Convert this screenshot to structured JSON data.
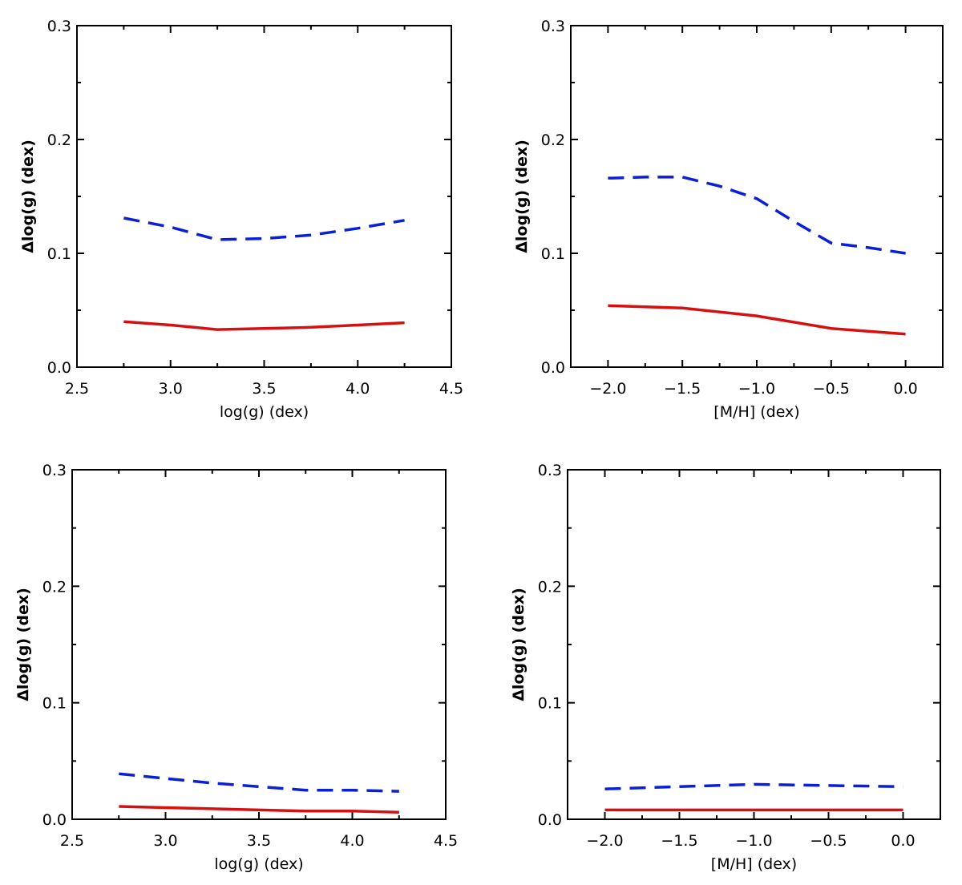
{
  "chart_data": [
    {
      "type": "line",
      "xlabel": "log(g) (dex)",
      "ylabel": "Δlog(g) (dex)",
      "xlim": [
        2.5,
        4.5
      ],
      "ylim": [
        0.0,
        0.3
      ],
      "xticks": [
        2.5,
        3.0,
        3.5,
        4.0,
        4.5
      ],
      "xtick_labels": [
        "2.5",
        "3.0",
        "3.5",
        "4.0",
        "4.5"
      ],
      "yticks": [
        0.0,
        0.1,
        0.2,
        0.3
      ],
      "ytick_labels": [
        "0.0",
        "0.1",
        "0.2",
        "0.3"
      ],
      "grid": false,
      "series": [
        {
          "name": "dashed",
          "color": "#0a1fd6",
          "style": "dashed",
          "x": [
            2.75,
            3.0,
            3.25,
            3.5,
            3.75,
            4.0,
            4.25
          ],
          "values": [
            0.131,
            0.123,
            0.112,
            0.113,
            0.116,
            0.122,
            0.129
          ]
        },
        {
          "name": "solid",
          "color": "#d61010",
          "style": "solid",
          "x": [
            2.75,
            3.0,
            3.25,
            3.5,
            3.75,
            4.0,
            4.25
          ],
          "values": [
            0.04,
            0.037,
            0.033,
            0.034,
            0.035,
            0.037,
            0.039
          ]
        }
      ]
    },
    {
      "type": "line",
      "xlabel": "[M/H] (dex)",
      "ylabel": "Δlog(g) (dex)",
      "xlim": [
        -2.25,
        0.25
      ],
      "ylim": [
        0.0,
        0.3
      ],
      "xticks": [
        -2.0,
        -1.5,
        -1.0,
        -0.5,
        0.0
      ],
      "xtick_labels": [
        "−2.0",
        "−1.5",
        "−1.0",
        "−0.5",
        "0.0"
      ],
      "yticks": [
        0.0,
        0.1,
        0.2,
        0.3
      ],
      "ytick_labels": [
        "0.0",
        "0.1",
        "0.2",
        "0.3"
      ],
      "grid": false,
      "series": [
        {
          "name": "dashed",
          "color": "#0a1fd6",
          "style": "dashed",
          "x": [
            -2.0,
            -1.75,
            -1.5,
            -1.25,
            -1.0,
            -0.75,
            -0.5,
            -0.25,
            0.0
          ],
          "values": [
            0.166,
            0.167,
            0.167,
            0.159,
            0.148,
            0.128,
            0.109,
            0.105,
            0.1
          ]
        },
        {
          "name": "solid",
          "color": "#d61010",
          "style": "solid",
          "x": [
            -2.0,
            -1.5,
            -1.0,
            -0.5,
            0.0
          ],
          "values": [
            0.054,
            0.052,
            0.045,
            0.034,
            0.029
          ]
        }
      ]
    },
    {
      "type": "line",
      "xlabel": "log(g) (dex)",
      "ylabel": "Δlog(g) (dex)",
      "xlim": [
        2.5,
        4.5
      ],
      "ylim": [
        0.0,
        0.3
      ],
      "xticks": [
        2.5,
        3.0,
        3.5,
        4.0,
        4.5
      ],
      "xtick_labels": [
        "2.5",
        "3.0",
        "3.5",
        "4.0",
        "4.5"
      ],
      "yticks": [
        0.0,
        0.1,
        0.2,
        0.3
      ],
      "ytick_labels": [
        "0.0",
        "0.1",
        "0.2",
        "0.3"
      ],
      "grid": false,
      "series": [
        {
          "name": "dashed",
          "color": "#0a1fd6",
          "style": "dashed",
          "x": [
            2.75,
            3.0,
            3.25,
            3.5,
            3.75,
            4.0,
            4.25
          ],
          "values": [
            0.039,
            0.035,
            0.031,
            0.028,
            0.025,
            0.025,
            0.024
          ]
        },
        {
          "name": "solid",
          "color": "#d61010",
          "style": "solid",
          "x": [
            2.75,
            3.0,
            3.25,
            3.5,
            3.75,
            4.0,
            4.25
          ],
          "values": [
            0.011,
            0.01,
            0.009,
            0.008,
            0.007,
            0.007,
            0.006
          ]
        }
      ]
    },
    {
      "type": "line",
      "xlabel": "[M/H] (dex)",
      "ylabel": "Δlog(g) (dex)",
      "xlim": [
        -2.25,
        0.25
      ],
      "ylim": [
        0.0,
        0.3
      ],
      "xticks": [
        -2.0,
        -1.5,
        -1.0,
        -0.5,
        0.0
      ],
      "xtick_labels": [
        "−2.0",
        "−1.5",
        "−1.0",
        "−0.5",
        "0.0"
      ],
      "yticks": [
        0.0,
        0.1,
        0.2,
        0.3
      ],
      "ytick_labels": [
        "0.0",
        "0.1",
        "0.2",
        "0.3"
      ],
      "grid": false,
      "series": [
        {
          "name": "dashed",
          "color": "#0a1fd6",
          "style": "dashed",
          "x": [
            -2.0,
            -1.5,
            -1.0,
            -0.5,
            0.0
          ],
          "values": [
            0.026,
            0.028,
            0.03,
            0.029,
            0.028
          ]
        },
        {
          "name": "solid",
          "color": "#d61010",
          "style": "solid",
          "x": [
            -2.0,
            -1.5,
            -1.0,
            -0.5,
            0.0
          ],
          "values": [
            0.008,
            0.008,
            0.008,
            0.008,
            0.008
          ]
        }
      ]
    }
  ]
}
